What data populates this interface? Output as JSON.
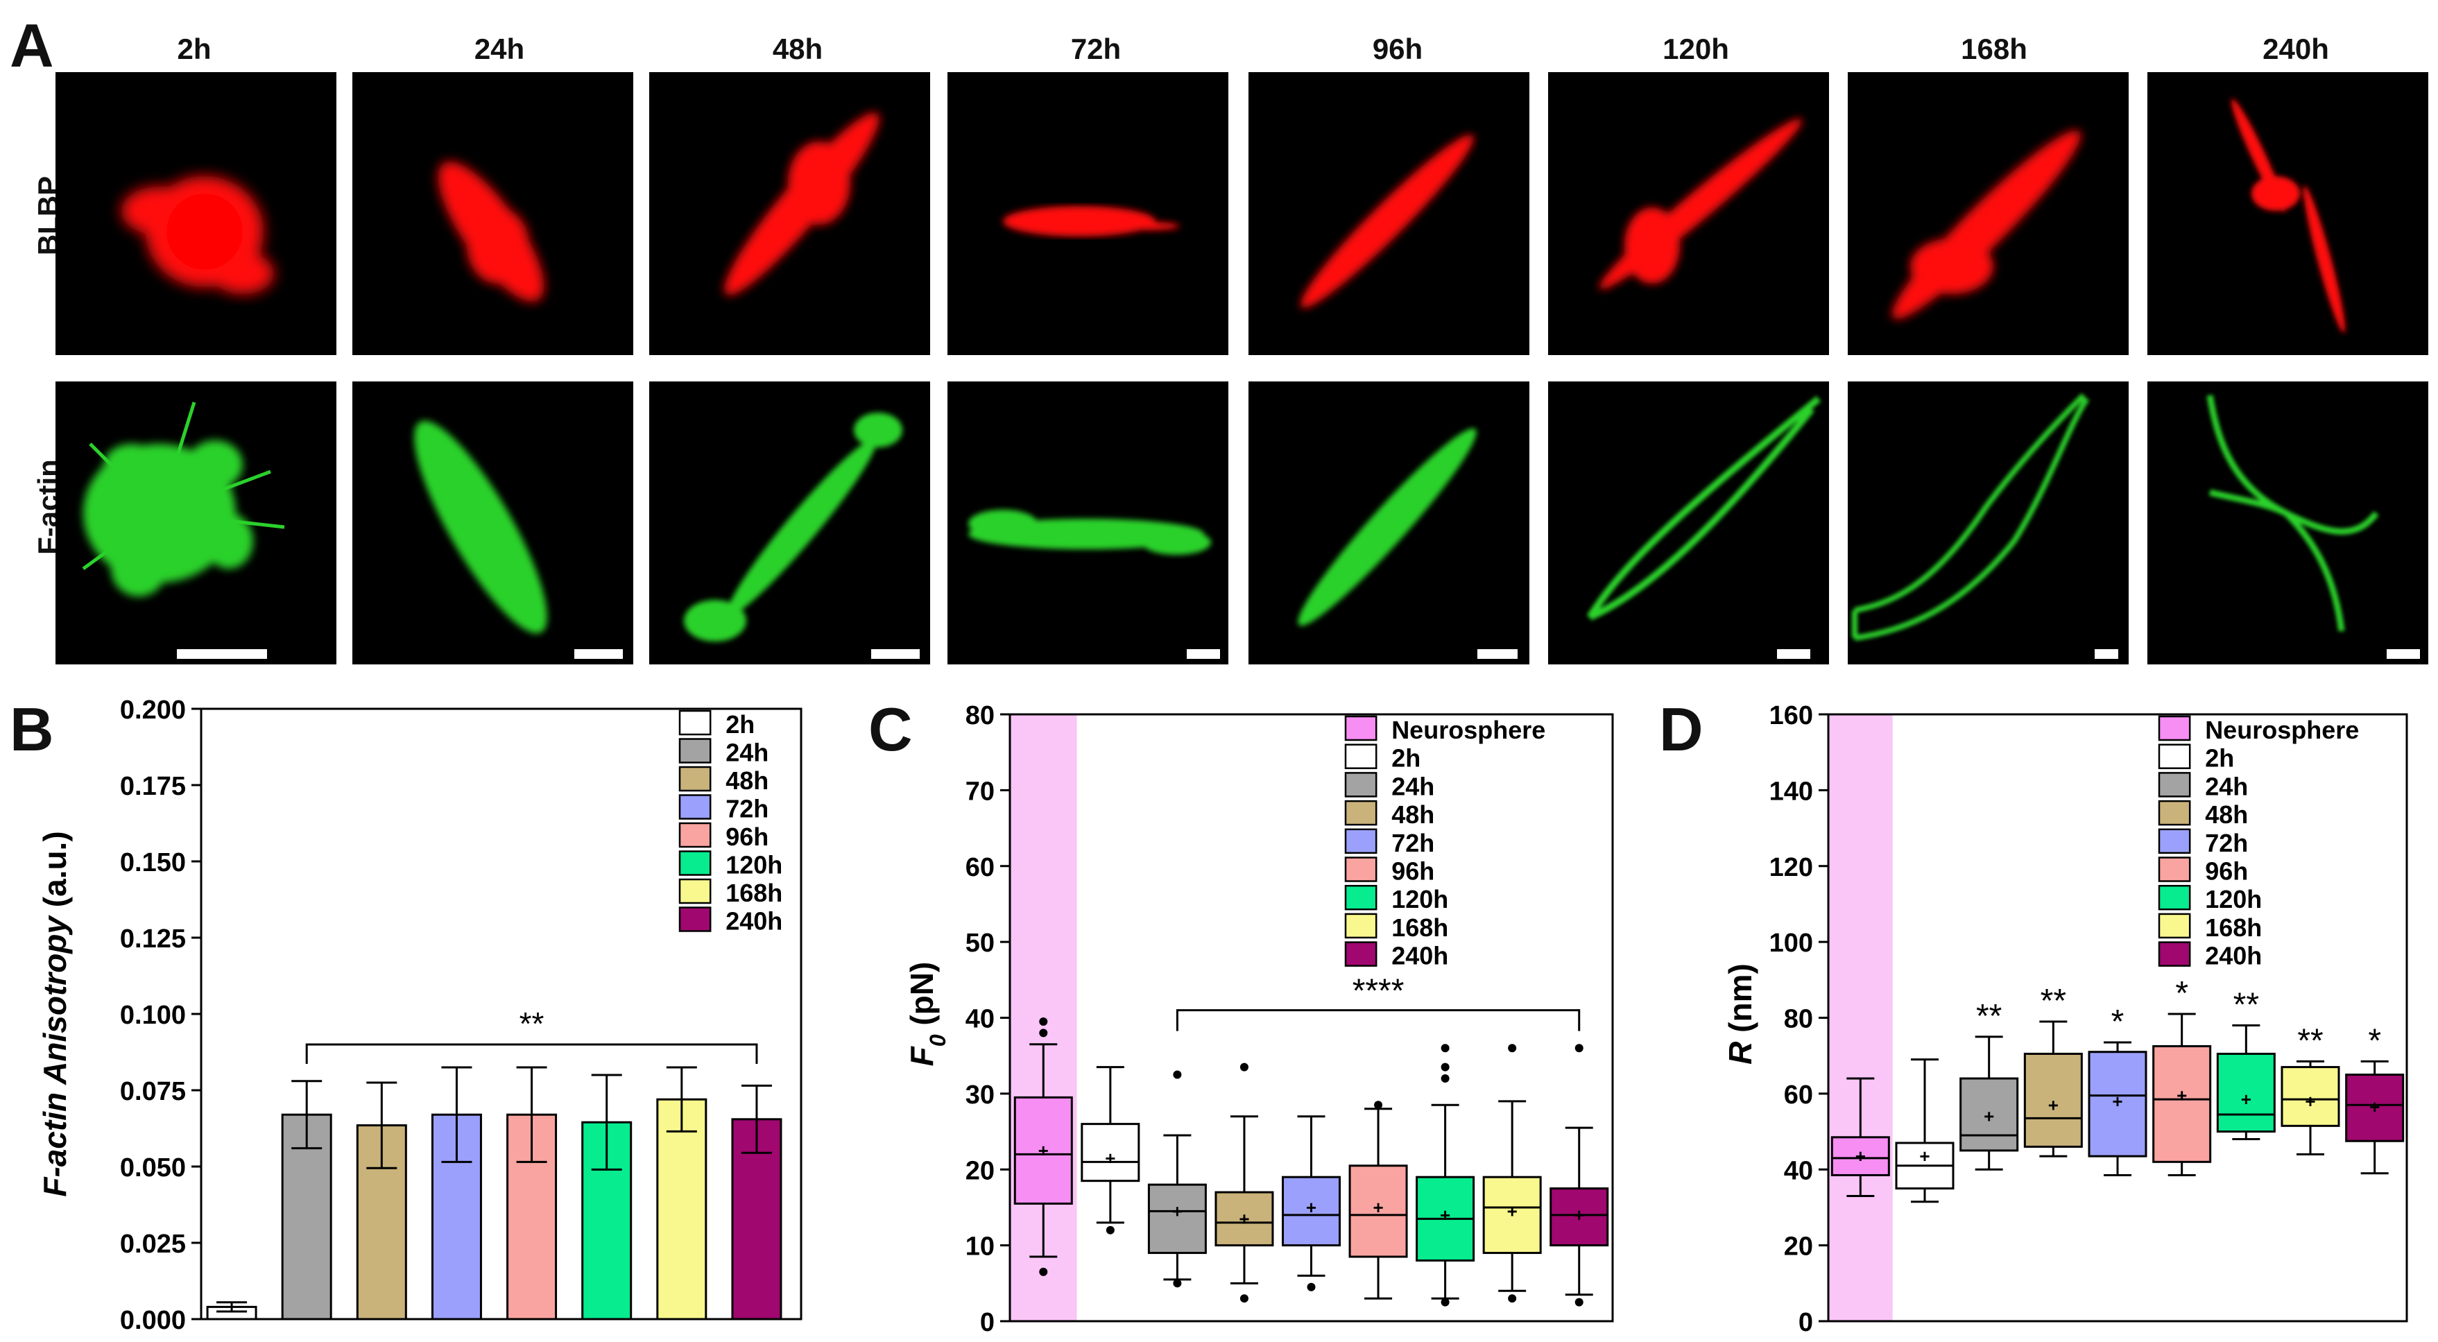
{
  "panels": {
    "A": "A",
    "B": "B",
    "C": "C",
    "D": "D"
  },
  "timepoints": [
    "2h",
    "24h",
    "48h",
    "72h",
    "96h",
    "120h",
    "168h",
    "240h"
  ],
  "row_labels": {
    "top": "BLBP",
    "bottom": "F-actin"
  },
  "colors": {
    "blbp": "#ff0000",
    "factin": "#2bd12b",
    "neurosphere": "#f78ef3",
    "neurosphere_band": "#f9c6f7",
    "2h": "#ffffff",
    "24h": "#a3a3a3",
    "48h": "#c9b37a",
    "72h": "#9aa0fb",
    "96h": "#f9a4a0",
    "120h": "#06ec8e",
    "168h": "#f8f88e",
    "240h": "#a0076f"
  },
  "chart_data": [
    {
      "id": "B",
      "type": "bar",
      "ylabel": "F-actin Anisotropy (a.u.)",
      "ylim": [
        0,
        0.2
      ],
      "ytick_labels": [
        "0.000",
        "0.025",
        "0.050",
        "0.075",
        "0.100",
        "0.125",
        "0.150",
        "0.175",
        "0.200"
      ],
      "categories": [
        "2h",
        "24h",
        "48h",
        "72h",
        "96h",
        "120h",
        "168h",
        "240h"
      ],
      "values": [
        0.004,
        0.067,
        0.0635,
        0.067,
        0.067,
        0.0645,
        0.072,
        0.0655
      ],
      "errors": [
        0.0015,
        0.011,
        0.014,
        0.0155,
        0.0155,
        0.0155,
        0.0105,
        0.011
      ],
      "legend": [
        "2h",
        "24h",
        "48h",
        "72h",
        "96h",
        "120h",
        "168h",
        "240h"
      ],
      "legend_position": "top-right",
      "significance": {
        "label": "**",
        "from": "24h",
        "to": "240h",
        "y": 0.09
      }
    },
    {
      "id": "C",
      "type": "box",
      "ylabel_var": "F",
      "ylabel_sub": "0",
      "ylabel_unit": " (pN)",
      "ylim": [
        0,
        80
      ],
      "ytick_labels": [
        "0",
        "10",
        "20",
        "30",
        "40",
        "50",
        "60",
        "70",
        "80"
      ],
      "categories": [
        "Neurosphere",
        "2h",
        "24h",
        "48h",
        "72h",
        "96h",
        "120h",
        "168h",
        "240h"
      ],
      "boxes": [
        {
          "whislo": 8.5,
          "q1": 15.5,
          "med": 22,
          "q3": 29.5,
          "whishi": 36.5,
          "mean": 22.5,
          "fliers": [
            6.5,
            38,
            39.5
          ]
        },
        {
          "whislo": 13,
          "q1": 18.5,
          "med": 21,
          "q3": 26,
          "whishi": 33.5,
          "mean": 21.5,
          "fliers": [
            12
          ]
        },
        {
          "whislo": 5.5,
          "q1": 9,
          "med": 14.5,
          "q3": 18,
          "whishi": 24.5,
          "mean": 14.5,
          "fliers": [
            5,
            32.5
          ]
        },
        {
          "whislo": 5,
          "q1": 10,
          "med": 13,
          "q3": 17,
          "whishi": 27,
          "mean": 13.5,
          "fliers": [
            3,
            33.5
          ]
        },
        {
          "whislo": 6,
          "q1": 10,
          "med": 14,
          "q3": 19,
          "whishi": 27,
          "mean": 15,
          "fliers": [
            4.5
          ]
        },
        {
          "whislo": 3,
          "q1": 8.5,
          "med": 14,
          "q3": 20.5,
          "whishi": 28,
          "mean": 15,
          "fliers": [
            28.5
          ]
        },
        {
          "whislo": 3,
          "q1": 8,
          "med": 13.5,
          "q3": 19,
          "whishi": 28.5,
          "mean": 14,
          "fliers": [
            2.5,
            32,
            33.5,
            36
          ]
        },
        {
          "whislo": 4,
          "q1": 9,
          "med": 15,
          "q3": 19,
          "whishi": 29,
          "mean": 14.5,
          "fliers": [
            3,
            36
          ]
        },
        {
          "whislo": 3.5,
          "q1": 10,
          "med": 14,
          "q3": 17.5,
          "whishi": 25.5,
          "mean": 14,
          "fliers": [
            2.5,
            36
          ]
        }
      ],
      "legend": [
        "Neurosphere",
        "2h",
        "24h",
        "48h",
        "72h",
        "96h",
        "120h",
        "168h",
        "240h"
      ],
      "legend_position": "top-right",
      "significance": {
        "label": "****",
        "from": "24h",
        "to": "240h",
        "y": 41
      }
    },
    {
      "id": "D",
      "type": "box",
      "ylabel_var": "R",
      "ylabel_unit": " (nm)",
      "ylim": [
        0,
        160
      ],
      "ytick_labels": [
        "0",
        "20",
        "40",
        "60",
        "80",
        "100",
        "120",
        "140",
        "160"
      ],
      "categories": [
        "Neurosphere",
        "2h",
        "24h",
        "48h",
        "72h",
        "96h",
        "120h",
        "168h",
        "240h"
      ],
      "boxes": [
        {
          "whislo": 33,
          "q1": 38.5,
          "med": 43,
          "q3": 48.5,
          "whishi": 64,
          "mean": 43.5
        },
        {
          "whislo": 31.5,
          "q1": 35,
          "med": 41,
          "q3": 47,
          "whishi": 69,
          "mean": 43.5
        },
        {
          "whislo": 40,
          "q1": 45,
          "med": 49,
          "q3": 64,
          "whishi": 75,
          "mean": 54
        },
        {
          "whislo": 43.5,
          "q1": 46,
          "med": 53.5,
          "q3": 70.5,
          "whishi": 79,
          "mean": 57
        },
        {
          "whislo": 38.5,
          "q1": 43.5,
          "med": 59.5,
          "q3": 71,
          "whishi": 73.5,
          "mean": 58
        },
        {
          "whislo": 38.5,
          "q1": 42,
          "med": 58.5,
          "q3": 72.5,
          "whishi": 81,
          "mean": 59.5
        },
        {
          "whislo": 48,
          "q1": 50,
          "med": 54.5,
          "q3": 70.5,
          "whishi": 78,
          "mean": 58.5
        },
        {
          "whislo": 44,
          "q1": 51.5,
          "med": 58.5,
          "q3": 67,
          "whishi": 68.5,
          "mean": 58
        },
        {
          "whislo": 39,
          "q1": 47.5,
          "med": 57,
          "q3": 65,
          "whishi": 68.5,
          "mean": 56.5
        }
      ],
      "significance_labels": [
        "",
        "",
        "**",
        "**",
        "*",
        "*",
        "**",
        "**",
        "*"
      ],
      "legend": [
        "Neurosphere",
        "2h",
        "24h",
        "48h",
        "72h",
        "96h",
        "120h",
        "168h",
        "240h"
      ],
      "legend_position": "top-right"
    }
  ]
}
